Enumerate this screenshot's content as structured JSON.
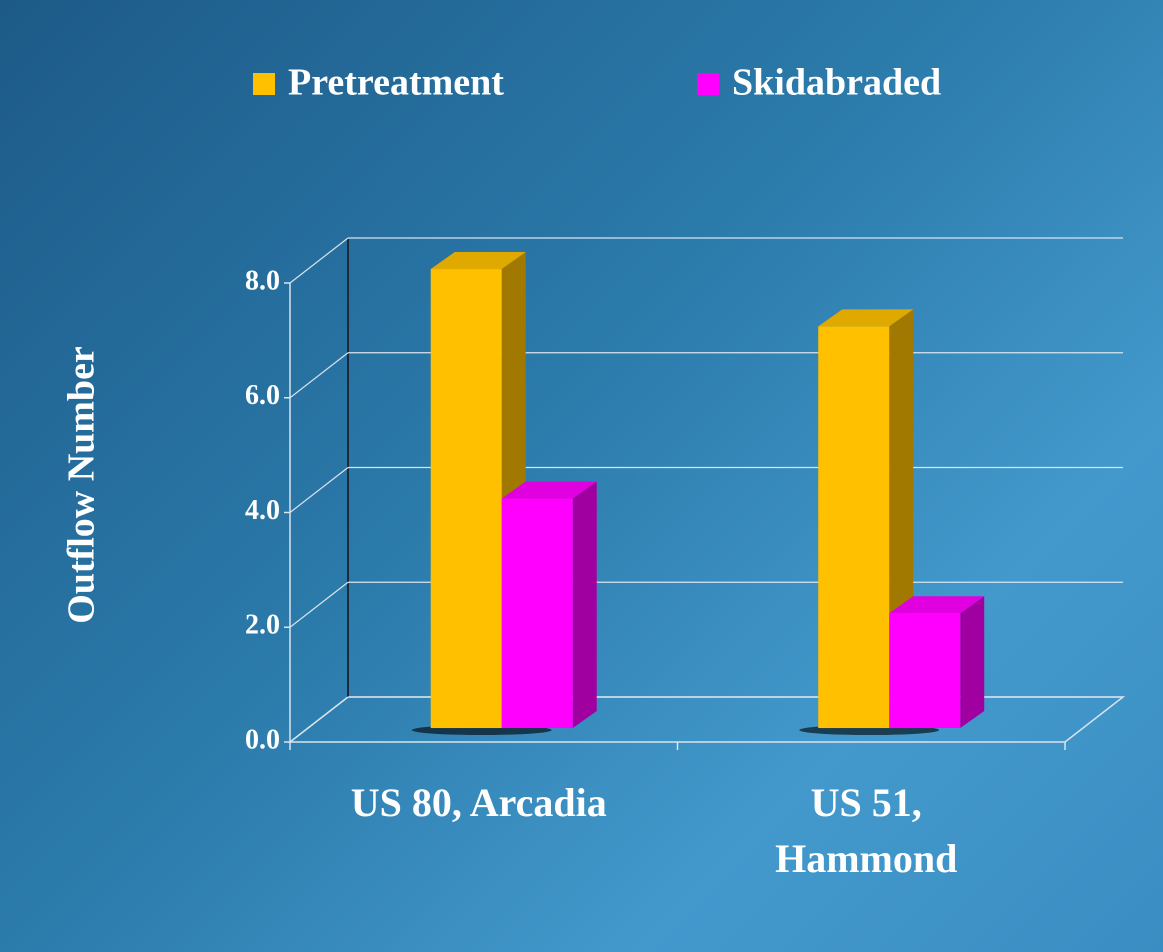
{
  "chart_data": {
    "type": "bar3d",
    "y_label": "Outflow Number",
    "categories": [
      "US 80, Arcadia",
      "US 51,\nHammond"
    ],
    "series": [
      {
        "name": "Pretreatment",
        "color": "#FFC000",
        "values": [
          8.0,
          7.0
        ]
      },
      {
        "name": "Skidabraded",
        "color": "#FF00FF",
        "values": [
          4.0,
          2.0
        ]
      }
    ],
    "ylim": [
      0,
      8
    ],
    "yticks": [
      {
        "value": 0,
        "label": "0.0"
      },
      {
        "value": 2,
        "label": "2.0"
      },
      {
        "value": 4,
        "label": "4.0"
      },
      {
        "value": 6,
        "label": "6.0"
      },
      {
        "value": 8,
        "label": "8.0"
      }
    ],
    "grid": true,
    "legend": "top"
  }
}
